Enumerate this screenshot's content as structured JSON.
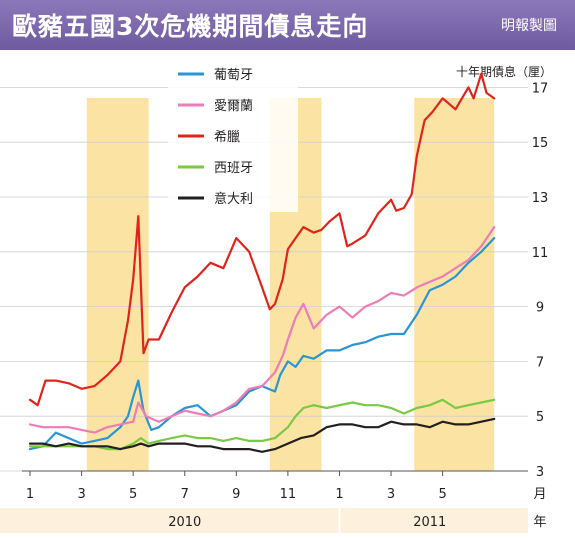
{
  "header": {
    "title": "歐豬五國3次危機期間債息走向",
    "credit": "明報製圖"
  },
  "chart_data": {
    "type": "line",
    "y_axis_label": "十年期債息（厘）",
    "ylim": [
      3,
      18
    ],
    "y_ticks": [
      3,
      5,
      7,
      9,
      11,
      13,
      15,
      17
    ],
    "x_unit_label": "月",
    "year_unit_label": "年",
    "x_tick_labels": [
      {
        "month": 1,
        "label": "1"
      },
      {
        "month": 3,
        "label": "3"
      },
      {
        "month": 5,
        "label": "5"
      },
      {
        "month": 7,
        "label": "7"
      },
      {
        "month": 9,
        "label": "9"
      },
      {
        "month": 11,
        "label": "11"
      },
      {
        "month": 13,
        "label": "1"
      },
      {
        "month": 15,
        "label": "3"
      },
      {
        "month": 17,
        "label": "5"
      }
    ],
    "year_labels": [
      {
        "label": "2010",
        "from": 1,
        "to": 13
      },
      {
        "label": "2011",
        "from": 13,
        "to": 20
      }
    ],
    "xlim": [
      1,
      20
    ],
    "crisis_periods": [
      [
        3.2,
        5.6
      ],
      [
        10.3,
        12.3
      ],
      [
        15.9,
        19
      ]
    ],
    "grid": true,
    "legend_position": "top-left",
    "series": [
      {
        "name": "葡萄牙",
        "color": "#2a95d2",
        "x": [
          1,
          1.5,
          2,
          2.5,
          3,
          3.5,
          4,
          4.5,
          4.8,
          5,
          5.2,
          5.4,
          5.7,
          6,
          6.5,
          7,
          7.5,
          8,
          8.5,
          9,
          9.5,
          10,
          10.5,
          10.7,
          11,
          11.3,
          11.6,
          12,
          12.5,
          13,
          13.5,
          14,
          14.5,
          15,
          15.5,
          16,
          16.5,
          17,
          17.5,
          18,
          18.5,
          19
        ],
        "values": [
          3.8,
          3.9,
          4.4,
          4.2,
          4.0,
          4.1,
          4.2,
          4.6,
          5.0,
          5.7,
          6.3,
          5.2,
          4.5,
          4.6,
          5.0,
          5.3,
          5.4,
          5.0,
          5.2,
          5.4,
          5.9,
          6.1,
          5.9,
          6.5,
          7.0,
          6.8,
          7.2,
          7.1,
          7.4,
          7.4,
          7.6,
          7.7,
          7.9,
          8.0,
          8.0,
          8.7,
          9.6,
          9.8,
          10.1,
          10.6,
          11.0,
          11.5
        ]
      },
      {
        "name": "愛爾蘭",
        "color": "#ee7cb6",
        "x": [
          1,
          1.5,
          2,
          2.5,
          3,
          3.5,
          4,
          4.5,
          5,
          5.2,
          5.5,
          6,
          6.5,
          7,
          7.5,
          8,
          8.5,
          9,
          9.5,
          10,
          10.5,
          10.8,
          11,
          11.3,
          11.6,
          12,
          12.5,
          13,
          13.5,
          14,
          14.5,
          15,
          15.5,
          16,
          16.5,
          17,
          17.5,
          18,
          18.5,
          19
        ],
        "values": [
          4.7,
          4.6,
          4.6,
          4.6,
          4.5,
          4.4,
          4.6,
          4.7,
          4.8,
          5.5,
          5.0,
          4.8,
          5.0,
          5.2,
          5.1,
          5.0,
          5.2,
          5.5,
          6.0,
          6.1,
          6.6,
          7.2,
          7.8,
          8.6,
          9.1,
          8.2,
          8.7,
          9.0,
          8.6,
          9.0,
          9.2,
          9.5,
          9.4,
          9.7,
          9.9,
          10.1,
          10.4,
          10.7,
          11.2,
          11.9
        ]
      },
      {
        "name": "希臘",
        "color": "#e0241b",
        "x": [
          1,
          1.3,
          1.6,
          2,
          2.5,
          3,
          3.5,
          4,
          4.5,
          4.8,
          5,
          5.2,
          5.4,
          5.6,
          6,
          6.5,
          7,
          7.5,
          8,
          8.5,
          9,
          9.5,
          10,
          10.3,
          10.5,
          10.8,
          11,
          11.3,
          11.6,
          12,
          12.3,
          12.6,
          13,
          13.3,
          13.5,
          14,
          14.5,
          15,
          15.2,
          15.5,
          15.8,
          16,
          16.3,
          16.6,
          17,
          17.5,
          18,
          18.2,
          18.5,
          18.7,
          19
        ],
        "values": [
          5.6,
          5.4,
          6.3,
          6.3,
          6.2,
          6.0,
          6.1,
          6.5,
          7.0,
          8.5,
          10.0,
          12.3,
          7.3,
          7.8,
          7.8,
          8.8,
          9.7,
          10.1,
          10.6,
          10.4,
          11.5,
          11.0,
          9.7,
          8.9,
          9.1,
          10.0,
          11.1,
          11.5,
          11.9,
          11.7,
          11.8,
          12.1,
          12.4,
          11.2,
          11.3,
          11.6,
          12.4,
          12.9,
          12.5,
          12.6,
          13.1,
          14.5,
          15.8,
          16.1,
          16.6,
          16.2,
          17.0,
          16.6,
          17.5,
          16.8,
          16.6
        ]
      },
      {
        "name": "西班牙",
        "color": "#7ac943",
        "x": [
          1,
          1.5,
          2,
          2.5,
          3,
          3.5,
          4,
          4.5,
          5,
          5.3,
          5.6,
          6,
          6.5,
          7,
          7.5,
          8,
          8.5,
          9,
          9.5,
          10,
          10.5,
          11,
          11.3,
          11.6,
          12,
          12.5,
          13,
          13.5,
          14,
          14.5,
          15,
          15.5,
          16,
          16.5,
          17,
          17.5,
          18,
          18.5,
          19
        ],
        "values": [
          3.9,
          3.9,
          3.9,
          3.9,
          3.9,
          3.9,
          3.8,
          3.8,
          4.0,
          4.2,
          4.0,
          4.1,
          4.2,
          4.3,
          4.2,
          4.2,
          4.1,
          4.2,
          4.1,
          4.1,
          4.2,
          4.6,
          5.0,
          5.3,
          5.4,
          5.3,
          5.4,
          5.5,
          5.4,
          5.4,
          5.3,
          5.1,
          5.3,
          5.4,
          5.6,
          5.3,
          5.4,
          5.5,
          5.6
        ]
      },
      {
        "name": "意大利",
        "color": "#231f20",
        "x": [
          1,
          1.5,
          2,
          2.5,
          3,
          3.5,
          4,
          4.5,
          5,
          5.3,
          5.6,
          6,
          6.5,
          7,
          7.5,
          8,
          8.5,
          9,
          9.5,
          10,
          10.5,
          11,
          11.5,
          12,
          12.5,
          13,
          13.5,
          14,
          14.5,
          15,
          15.5,
          16,
          16.5,
          17,
          17.5,
          18,
          18.5,
          19
        ],
        "values": [
          4.0,
          4.0,
          3.9,
          4.0,
          3.9,
          3.9,
          3.9,
          3.8,
          3.9,
          4.0,
          3.9,
          4.0,
          4.0,
          4.0,
          3.9,
          3.9,
          3.8,
          3.8,
          3.8,
          3.7,
          3.8,
          4.0,
          4.2,
          4.3,
          4.6,
          4.7,
          4.7,
          4.6,
          4.6,
          4.8,
          4.7,
          4.7,
          4.6,
          4.8,
          4.7,
          4.7,
          4.8,
          4.9
        ]
      }
    ]
  }
}
